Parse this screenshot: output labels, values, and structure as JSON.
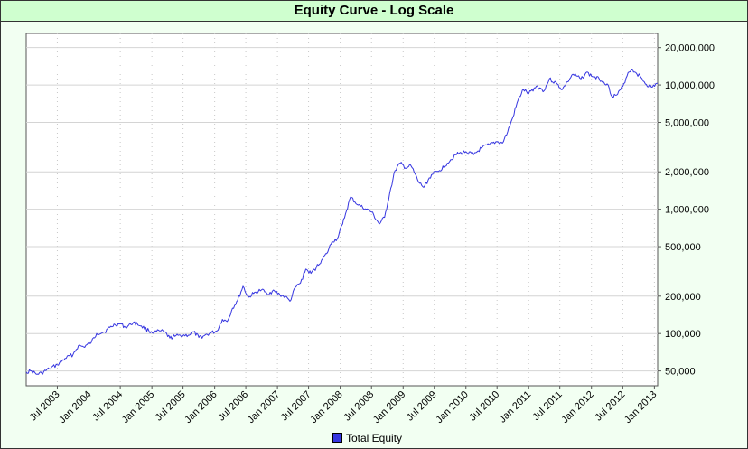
{
  "chart_data": {
    "type": "line",
    "title": "Equity Curve - Log Scale",
    "xlabel": "",
    "ylabel": "",
    "y_scale": "log",
    "ylim": [
      38000,
      26000000
    ],
    "xlim": [
      "2003-01-01",
      "2013-01-20"
    ],
    "grid": true,
    "legend_position": "bottom-center",
    "y_ticks": [
      {
        "value": 50000,
        "label": "50,000"
      },
      {
        "value": 100000,
        "label": "100,000"
      },
      {
        "value": 200000,
        "label": "200,000"
      },
      {
        "value": 500000,
        "label": "500,000"
      },
      {
        "value": 1000000,
        "label": "1,000,000"
      },
      {
        "value": 2000000,
        "label": "2,000,000"
      },
      {
        "value": 5000000,
        "label": "5,000,000"
      },
      {
        "value": 10000000,
        "label": "10,000,000"
      },
      {
        "value": 20000000,
        "label": "20,000,000"
      }
    ],
    "x_ticks": [
      {
        "date": "2003-07-01",
        "label": "Jul 2003"
      },
      {
        "date": "2004-01-01",
        "label": "Jan 2004"
      },
      {
        "date": "2004-07-01",
        "label": "Jul 2004"
      },
      {
        "date": "2005-01-01",
        "label": "Jan 2005"
      },
      {
        "date": "2005-07-01",
        "label": "Jul 2005"
      },
      {
        "date": "2006-01-01",
        "label": "Jan 2006"
      },
      {
        "date": "2006-07-01",
        "label": "Jul 2006"
      },
      {
        "date": "2007-01-01",
        "label": "Jan 2007"
      },
      {
        "date": "2007-07-01",
        "label": "Jul 2007"
      },
      {
        "date": "2008-01-01",
        "label": "Jan 2008"
      },
      {
        "date": "2008-07-01",
        "label": "Jul 2008"
      },
      {
        "date": "2009-01-01",
        "label": "Jan 2009"
      },
      {
        "date": "2009-07-01",
        "label": "Jul 2009"
      },
      {
        "date": "2010-01-01",
        "label": "Jan 2010"
      },
      {
        "date": "2010-07-01",
        "label": "Jul 2010"
      },
      {
        "date": "2011-01-01",
        "label": "Jan 2011"
      },
      {
        "date": "2011-07-01",
        "label": "Jul 2011"
      },
      {
        "date": "2012-01-01",
        "label": "Jan 2012"
      },
      {
        "date": "2012-07-01",
        "label": "Jul 2012"
      },
      {
        "date": "2013-01-01",
        "label": "Jan 2013"
      }
    ],
    "series": [
      {
        "name": "Total Equity",
        "color": "#3636e0",
        "points": [
          [
            "2003-01-01",
            49000
          ],
          [
            "2003-02-01",
            50000
          ],
          [
            "2003-03-01",
            47000
          ],
          [
            "2003-04-01",
            48000
          ],
          [
            "2003-05-15",
            52000
          ],
          [
            "2003-07-01",
            56000
          ],
          [
            "2003-08-15",
            63000
          ],
          [
            "2003-10-01",
            68000
          ],
          [
            "2003-11-01",
            80000
          ],
          [
            "2003-12-01",
            78000
          ],
          [
            "2004-01-15",
            85000
          ],
          [
            "2004-02-15",
            100000
          ],
          [
            "2004-04-01",
            103000
          ],
          [
            "2004-05-01",
            112000
          ],
          [
            "2004-06-01",
            118000
          ],
          [
            "2004-07-01",
            120000
          ],
          [
            "2004-08-01",
            112000
          ],
          [
            "2004-09-15",
            123000
          ],
          [
            "2004-11-01",
            115000
          ],
          [
            "2004-12-15",
            105000
          ],
          [
            "2005-01-15",
            102000
          ],
          [
            "2005-02-15",
            105000
          ],
          [
            "2005-03-15",
            103000
          ],
          [
            "2005-04-15",
            92000
          ],
          [
            "2005-05-15",
            95000
          ],
          [
            "2005-06-15",
            97000
          ],
          [
            "2005-08-01",
            97000
          ],
          [
            "2005-09-01",
            103000
          ],
          [
            "2005-10-01",
            93000
          ],
          [
            "2005-11-01",
            96000
          ],
          [
            "2005-12-01",
            100000
          ],
          [
            "2006-01-15",
            105000
          ],
          [
            "2006-02-15",
            130000
          ],
          [
            "2006-03-15",
            125000
          ],
          [
            "2006-04-15",
            160000
          ],
          [
            "2006-05-15",
            185000
          ],
          [
            "2006-06-15",
            240000
          ],
          [
            "2006-07-15",
            195000
          ],
          [
            "2006-08-15",
            210000
          ],
          [
            "2006-10-01",
            225000
          ],
          [
            "2006-11-01",
            210000
          ],
          [
            "2006-12-15",
            220000
          ],
          [
            "2007-01-15",
            205000
          ],
          [
            "2007-02-15",
            198000
          ],
          [
            "2007-03-15",
            182000
          ],
          [
            "2007-04-15",
            235000
          ],
          [
            "2007-05-15",
            255000
          ],
          [
            "2007-06-15",
            330000
          ],
          [
            "2007-07-15",
            305000
          ],
          [
            "2007-08-15",
            340000
          ],
          [
            "2007-09-15",
            390000
          ],
          [
            "2007-10-15",
            440000
          ],
          [
            "2007-11-15",
            550000
          ],
          [
            "2007-12-15",
            580000
          ],
          [
            "2008-01-15",
            760000
          ],
          [
            "2008-02-01",
            920000
          ],
          [
            "2008-03-01",
            1250000
          ],
          [
            "2008-04-15",
            1080000
          ],
          [
            "2008-06-01",
            1000000
          ],
          [
            "2008-07-01",
            950000
          ],
          [
            "2008-08-15",
            760000
          ],
          [
            "2008-09-15",
            860000
          ],
          [
            "2008-10-15",
            1350000
          ],
          [
            "2008-11-15",
            2050000
          ],
          [
            "2008-12-15",
            2350000
          ],
          [
            "2009-01-15",
            2150000
          ],
          [
            "2009-02-15",
            2250000
          ],
          [
            "2009-04-01",
            1650000
          ],
          [
            "2009-05-01",
            1500000
          ],
          [
            "2009-06-15",
            1900000
          ],
          [
            "2009-08-01",
            2050000
          ],
          [
            "2009-09-15",
            2350000
          ],
          [
            "2009-11-01",
            2750000
          ],
          [
            "2010-01-01",
            2900000
          ],
          [
            "2010-02-15",
            2750000
          ],
          [
            "2010-04-01",
            3100000
          ],
          [
            "2010-05-15",
            3300000
          ],
          [
            "2010-07-01",
            3500000
          ],
          [
            "2010-08-01",
            3400000
          ],
          [
            "2010-09-01",
            4200000
          ],
          [
            "2010-10-01",
            5500000
          ],
          [
            "2010-11-01",
            7600000
          ],
          [
            "2010-12-01",
            9200000
          ],
          [
            "2011-01-01",
            8500000
          ],
          [
            "2011-02-15",
            9800000
          ],
          [
            "2011-04-01",
            9000000
          ],
          [
            "2011-05-01",
            11200000
          ],
          [
            "2011-06-15",
            10200000
          ],
          [
            "2011-07-15",
            9200000
          ],
          [
            "2011-08-15",
            10600000
          ],
          [
            "2011-09-15",
            12200000
          ],
          [
            "2011-11-01",
            11200000
          ],
          [
            "2011-12-01",
            12600000
          ],
          [
            "2012-01-15",
            11600000
          ],
          [
            "2012-02-15",
            11200000
          ],
          [
            "2012-04-01",
            10200000
          ],
          [
            "2012-05-01",
            8100000
          ],
          [
            "2012-06-01",
            8400000
          ],
          [
            "2012-07-01",
            9700000
          ],
          [
            "2012-08-01",
            12600000
          ],
          [
            "2012-08-20",
            13400000
          ],
          [
            "2012-09-15",
            12600000
          ],
          [
            "2012-10-15",
            11500000
          ],
          [
            "2012-11-15",
            10100000
          ],
          [
            "2012-12-15",
            9600000
          ],
          [
            "2013-01-20",
            10300000
          ]
        ]
      }
    ]
  },
  "legend": {
    "label": "Total Equity",
    "swatch_color": "#3636e0"
  }
}
